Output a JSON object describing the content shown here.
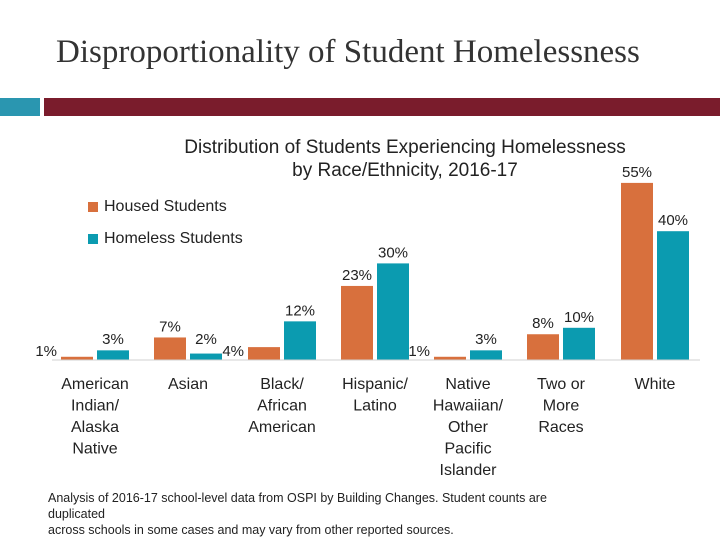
{
  "slide": {
    "title": "Disproportionality of Student Homelessness",
    "accent_teal": "#2a96b0",
    "accent_red": "#7a1c2c"
  },
  "chart_data": {
    "type": "bar",
    "title": "Distribution of Students Experiencing Homelessness by Race/Ethnicity, 2016-17",
    "title_lines": [
      "Distribution of Students Experiencing Homelessness",
      "by Race/Ethnicity, 2016-17"
    ],
    "categories": [
      [
        "American",
        "Indian/",
        "Alaska",
        "Native"
      ],
      [
        "Asian"
      ],
      [
        "Black/",
        "African",
        "American"
      ],
      [
        "Hispanic/",
        "Latino"
      ],
      [
        "Native",
        "Hawaiian/",
        "Other",
        "Pacific",
        "Islander"
      ],
      [
        "Two or",
        "More",
        "Races"
      ],
      [
        "White"
      ]
    ],
    "series": [
      {
        "name": "Housed Students",
        "color": "#d8703d",
        "values": [
          1,
          7,
          4,
          23,
          1,
          8,
          55
        ]
      },
      {
        "name": "Homeless Students",
        "color": "#0b9bb0",
        "values": [
          3,
          2,
          12,
          30,
          3,
          10,
          40
        ]
      }
    ],
    "value_suffix": "%",
    "ylim": [
      0,
      55
    ],
    "xlabel": "",
    "ylabel": "",
    "grid": false,
    "legend": "top-left"
  },
  "footnote": {
    "lines": [
      "Analysis of 2016-17 school-level data from OSPI by Building Changes. Student counts are",
      "duplicated",
      "across schools in some cases and may vary from other reported sources."
    ]
  }
}
